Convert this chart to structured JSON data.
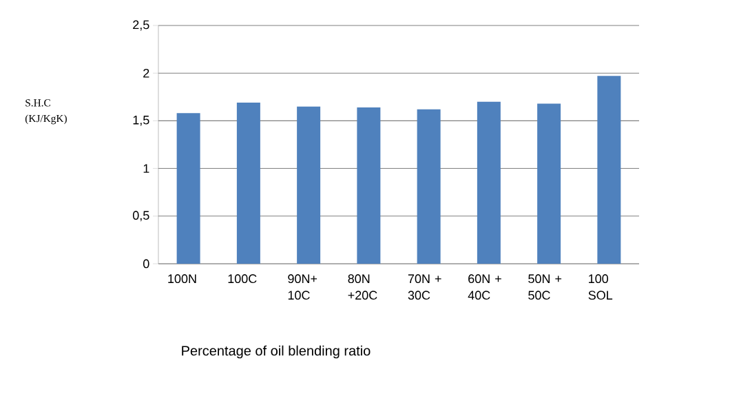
{
  "chart_data": {
    "type": "bar",
    "categories": [
      "100N",
      "100C",
      "90N+ 10C",
      "80N +20C",
      "70N + 30C",
      "60N + 40C",
      "50N + 50C",
      "100 SOL"
    ],
    "values": [
      1.58,
      1.69,
      1.65,
      1.64,
      1.62,
      1.7,
      1.68,
      1.97
    ],
    "color": "#4f81bd",
    "xlabel": "Percentage of oil blending ratio",
    "annotations": [
      "S.H.C (KJ/KgK)"
    ],
    "ylim": [
      0,
      2.5
    ],
    "yticks": [
      0,
      {
        "value": 0.5,
        "label": "0,5"
      },
      1,
      {
        "value": 1.5,
        "label": "1,5"
      },
      2,
      {
        "value": 2.5,
        "label": "2,5"
      }
    ],
    "grid": "y"
  }
}
